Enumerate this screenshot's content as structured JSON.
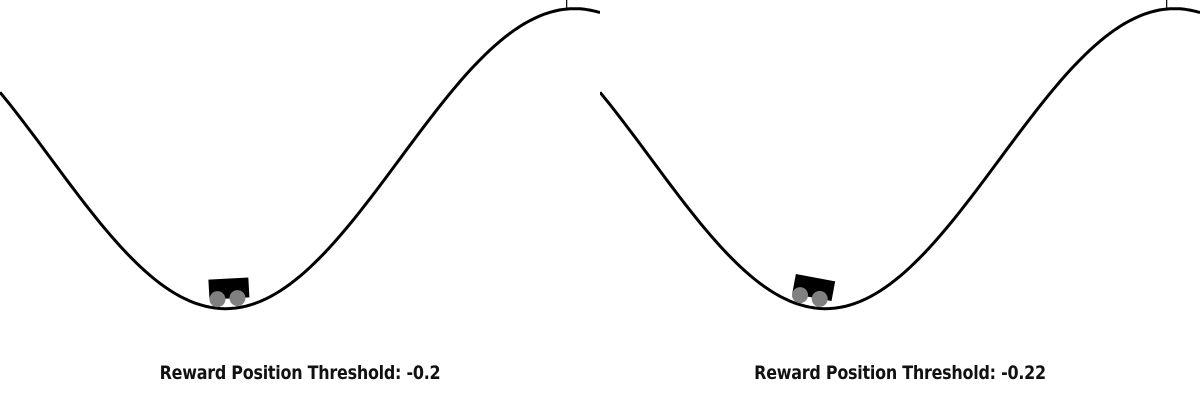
{
  "colors": {
    "background": "#ffffff",
    "track": "#000000",
    "car_body": "#000000",
    "wheels": "#808080",
    "flag": "#cccc00",
    "flagpole": "#000000",
    "text": "#111111"
  },
  "icons": [
    "car-icon",
    "goal-flag-icon"
  ],
  "panels": [
    {
      "caption_label": "Reward Position Threshold:",
      "threshold_value": "-0.2",
      "car_position": -0.51,
      "goal_position": 0.5
    },
    {
      "caption_label": "Reward Position Threshold:",
      "threshold_value": "-0.22",
      "car_position": -0.57,
      "goal_position": 0.5
    }
  ]
}
